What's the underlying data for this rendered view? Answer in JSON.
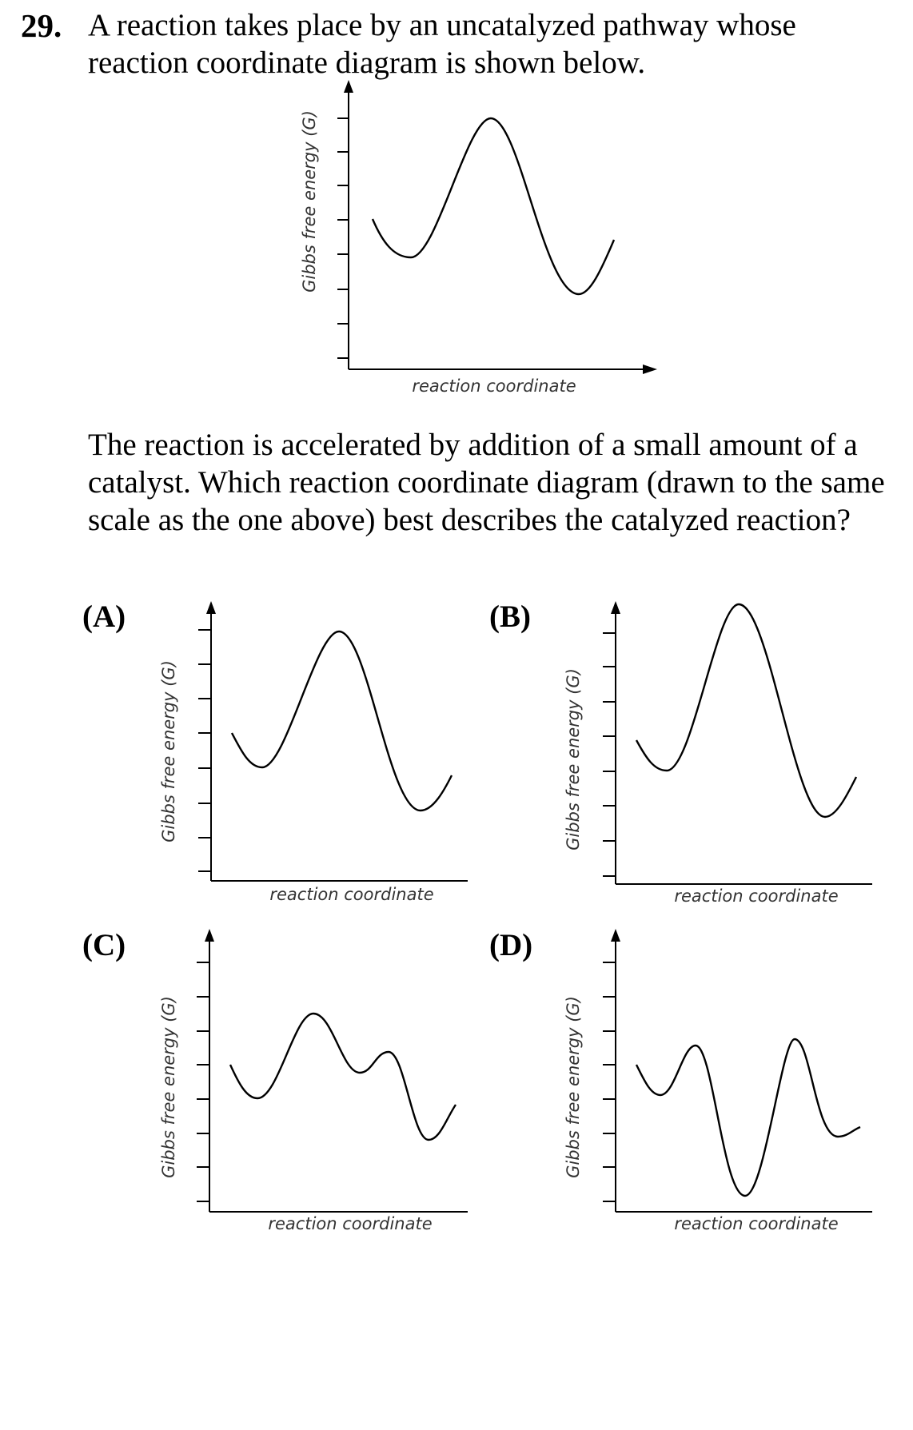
{
  "question": {
    "number": "29.",
    "stem": "A reaction takes place by an uncatalyzed pathway whose reaction coordinate diagram is shown below.",
    "followup": "The reaction is accelerated by addition of a small amount of a catalyst. Which reaction coordinate diagram (drawn to the same scale as the one above) best describes the catalyzed reaction?"
  },
  "axis_labels": {
    "x": "reaction coordinate",
    "y": "Gibbs free energy (G)"
  },
  "options": [
    {
      "label": "(A)"
    },
    {
      "label": "(B)"
    },
    {
      "label": "(C)"
    },
    {
      "label": "(D)"
    }
  ]
}
